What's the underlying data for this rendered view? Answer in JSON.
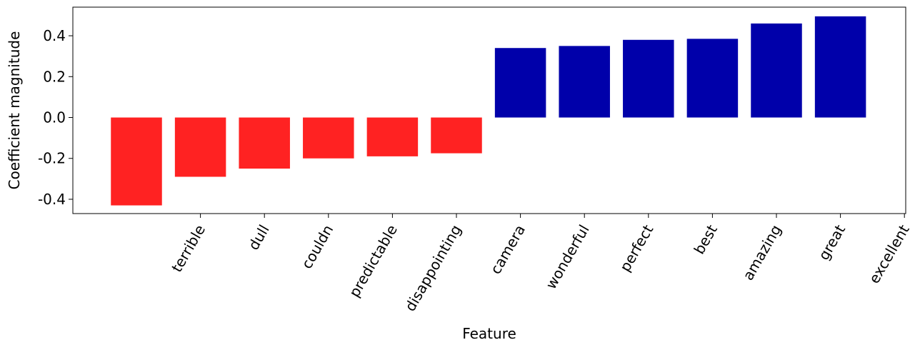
{
  "chart_data": {
    "type": "bar",
    "title": "",
    "xlabel": "Feature",
    "ylabel": "Coefficient magnitude",
    "ylim": [
      -0.47,
      0.54
    ],
    "yticks": [
      -0.4,
      -0.2,
      0.0,
      0.2,
      0.4
    ],
    "ytick_labels": [
      "-0.4",
      "-0.2",
      "0.0",
      "0.2",
      "0.4"
    ],
    "grid": false,
    "tick_labels": [
      "terrible",
      "dull",
      "couldn",
      "predictable",
      "disappointing",
      "camera",
      "wonderful",
      "perfect",
      "best",
      "amazing",
      "great",
      "excellent"
    ],
    "values": [
      -0.43,
      -0.29,
      -0.25,
      -0.2,
      -0.19,
      -0.175,
      0.34,
      0.35,
      0.38,
      0.385,
      0.46,
      0.495
    ],
    "colors": {
      "negative": "#ff2222",
      "positive": "#0000aa"
    }
  }
}
